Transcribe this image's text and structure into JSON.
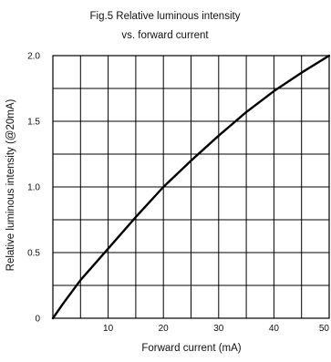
{
  "chart_data": {
    "type": "line",
    "title": "Fig.5 Relative luminous intensity",
    "subtitle": "vs. forward current",
    "xlabel": "Forward current (mA)",
    "ylabel": "Relative luminous intensity (@20mA)",
    "xlim": [
      0,
      50
    ],
    "ylim": [
      0,
      2.0
    ],
    "x_ticks": [
      10,
      20,
      30,
      40,
      50
    ],
    "x_tick_labels": [
      "10",
      "20",
      "30",
      "40",
      "50"
    ],
    "y_ticks": [
      0,
      0.5,
      1.0,
      1.5,
      2.0
    ],
    "y_tick_labels": [
      "0",
      "0.5",
      "1.0",
      "1.5",
      "2.0"
    ],
    "grid": true,
    "grid_x_step": 5,
    "grid_y_step": 0.25,
    "series": [
      {
        "x": [
          0,
          2,
          5,
          10,
          15,
          20,
          25,
          30,
          35,
          40,
          45,
          50
        ],
        "y": [
          0,
          0.12,
          0.29,
          0.53,
          0.77,
          1.0,
          1.2,
          1.39,
          1.57,
          1.73,
          1.87,
          2.0
        ]
      }
    ],
    "colors": {
      "line": "#000000",
      "grid": "#000000",
      "axis": "#000000"
    }
  }
}
